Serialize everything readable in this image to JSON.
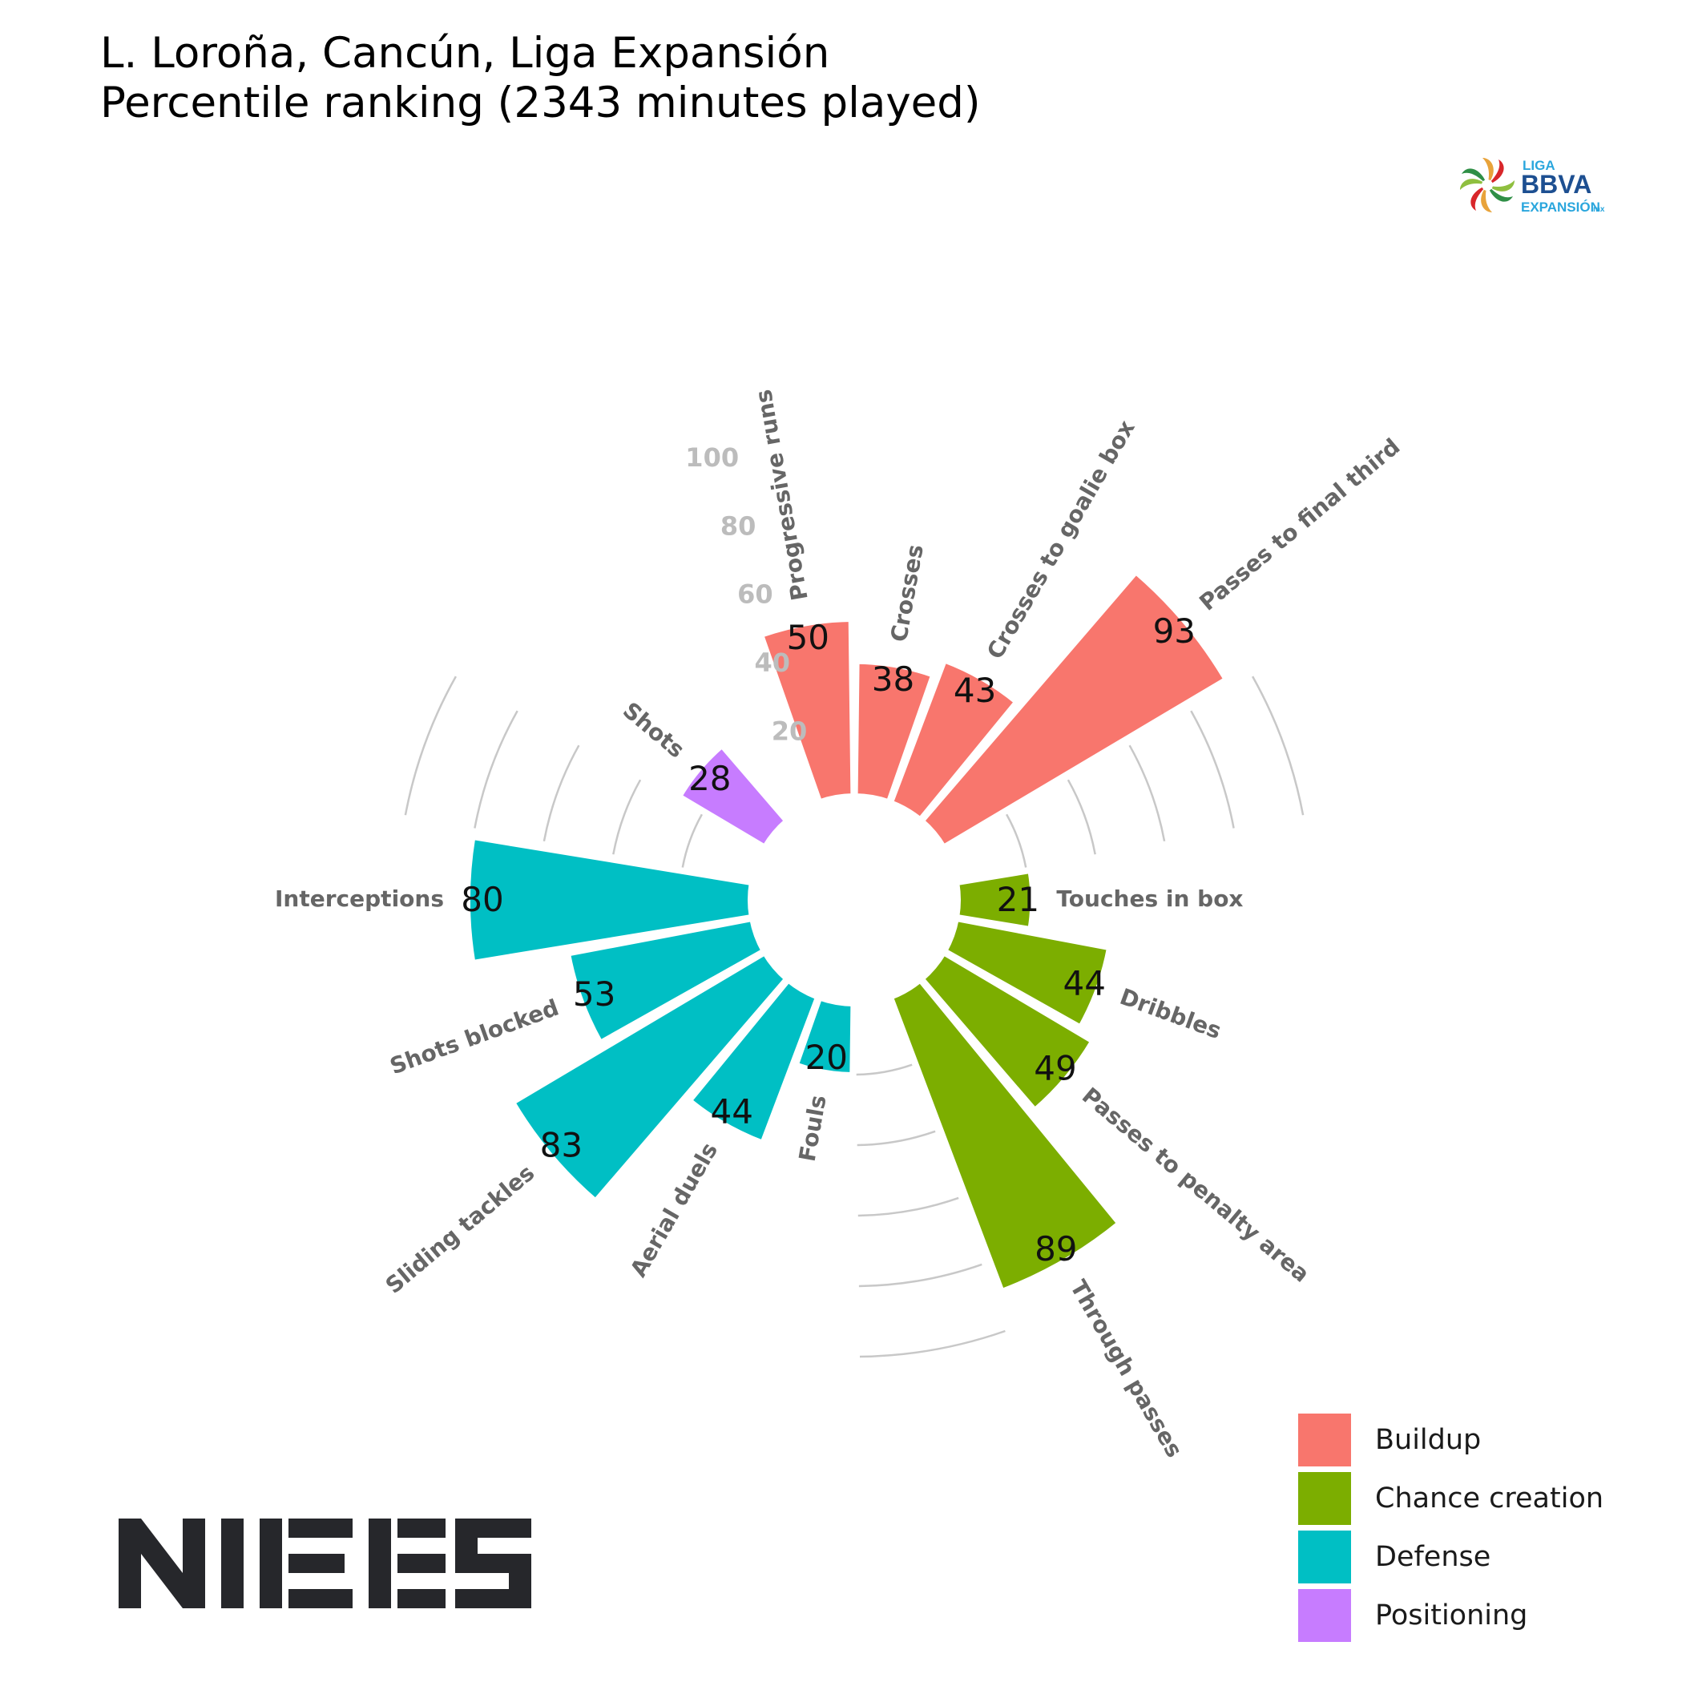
{
  "title": {
    "line1": "L. Loroña, Cancún, Liga Expansión",
    "line2": "Percentile ranking (2343 minutes played)"
  },
  "logos": {
    "league": {
      "line1": "LIGA",
      "line2": "BBVA",
      "line3": "EXPANSIÓN",
      "suffix": "mx"
    },
    "brand": "NIESS"
  },
  "colors": {
    "Buildup": "#F8766D",
    "Chance creation": "#7CAE00",
    "Defense": "#00BFC4",
    "Positioning": "#C77CFF",
    "grid": "#c8c8c8",
    "label": "#666666",
    "axis_tick": "#bcbcbc"
  },
  "legend": {
    "items": [
      {
        "label": "Buildup",
        "color": "#F8766D"
      },
      {
        "label": "Chance creation",
        "color": "#7CAE00"
      },
      {
        "label": "Defense",
        "color": "#00BFC4"
      },
      {
        "label": "Positioning",
        "color": "#C77CFF"
      }
    ]
  },
  "chart_data": {
    "type": "bar",
    "subtype": "polar",
    "title": "L. Loroña, Cancún, Liga Expansión",
    "subtitle": "Percentile ranking (2343 minutes played)",
    "rlim": [
      0,
      100
    ],
    "radial_ticks": [
      20,
      40,
      60,
      80,
      100
    ],
    "grid": true,
    "legend_position": "bottom-right",
    "categories": [
      "Progressive runs",
      "Crosses",
      "Crosses to goalie box",
      "Passes to final third",
      "Touches in box",
      "Dribbles",
      "Passes to penalty area",
      "Through passes",
      "Fouls",
      "Aerial duels",
      "Sliding tackles",
      "Shots blocked",
      "Interceptions",
      "Shots"
    ],
    "values": [
      50,
      38,
      43,
      93,
      21,
      44,
      49,
      89,
      20,
      44,
      83,
      53,
      80,
      28
    ],
    "groups": [
      "Buildup",
      "Buildup",
      "Buildup",
      "Buildup",
      "Chance creation",
      "Chance creation",
      "Chance creation",
      "Chance creation",
      "Defense",
      "Defense",
      "Defense",
      "Defense",
      "Defense",
      "Positioning"
    ]
  }
}
